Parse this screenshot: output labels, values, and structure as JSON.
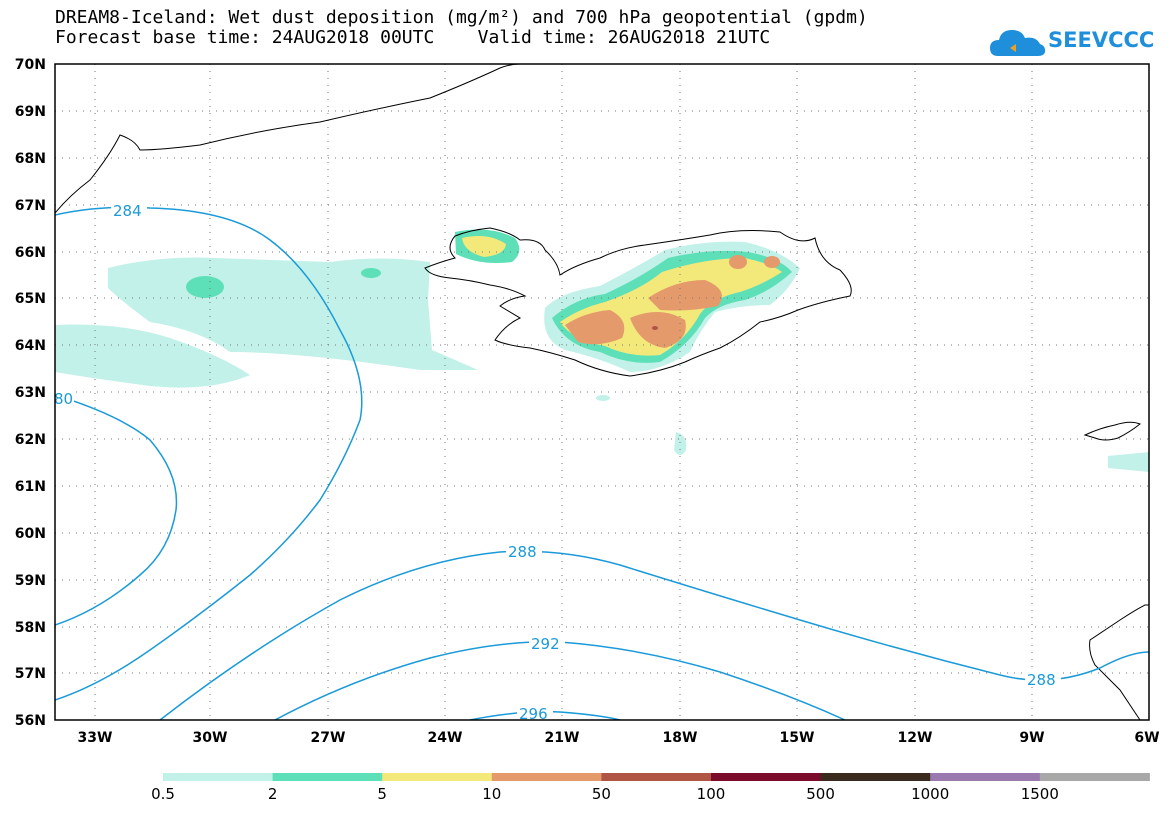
{
  "header": {
    "title_line1": "DREAM8-Iceland: Wet dust deposition (mg/m²) and 700 hPa geopotential (gpdm)",
    "title_line2": "Forecast base time: 24AUG2018 00UTC    Valid time: 26AUG2018 21UTC"
  },
  "logo": {
    "text": "SEEVCCC",
    "icon": "cloud-icon",
    "color": "#1f8fdc"
  },
  "axes": {
    "lat_labels": [
      "70N",
      "69N",
      "68N",
      "67N",
      "66N",
      "65N",
      "64N",
      "63N",
      "62N",
      "61N",
      "60N",
      "59N",
      "58N",
      "57N",
      "56N"
    ],
    "lon_labels": [
      "33W",
      "30W",
      "27W",
      "24W",
      "21W",
      "18W",
      "15W",
      "12W",
      "9W",
      "6W"
    ]
  },
  "contours": {
    "color": "#1a9ad8",
    "labels": [
      "284",
      "80",
      "288",
      "292",
      "296",
      "288"
    ]
  },
  "legend": {
    "colors": [
      "#c2f1ea",
      "#5ddfb8",
      "#f3e87a",
      "#e59a6c",
      "#b05445",
      "#7a0b2a",
      "#3a2a1e",
      "#9a7aae",
      "#a8a8a8"
    ],
    "labels": [
      "0.5",
      "2",
      "5",
      "10",
      "50",
      "100",
      "500",
      "1000",
      "1500"
    ]
  }
}
